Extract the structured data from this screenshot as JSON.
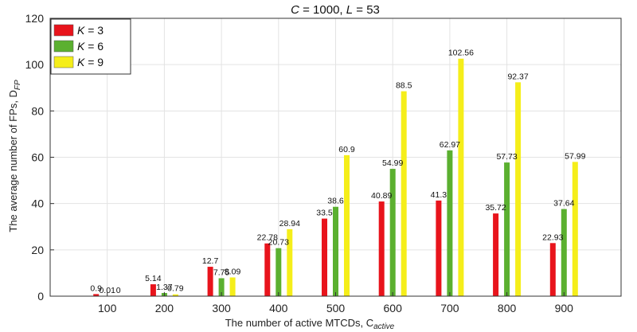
{
  "chart_data": {
    "type": "bar",
    "title": "C = 1000, L = 53",
    "title_parts": {
      "c_var": "C",
      "c_rest": " = 1000, ",
      "l_var": "L",
      "l_rest": " = 53"
    },
    "xlabel": "The number of active MTCDs, C",
    "xlabel_subscript": "active",
    "ylabel": "The average number of FPs, D",
    "ylabel_subscript": "FP",
    "categories": [
      "100",
      "200",
      "300",
      "400",
      "500",
      "600",
      "700",
      "800",
      "900"
    ],
    "ylim": [
      0,
      120
    ],
    "yticks": [
      "0",
      "20",
      "40",
      "60",
      "80",
      "100",
      "120"
    ],
    "grid": true,
    "legend_position": "top-left",
    "series": [
      {
        "name": "K = 3",
        "name_var": "K",
        "name_rest": " = 3",
        "color": "#e8141c",
        "values": [
          0.9,
          5.14,
          12.7,
          22.78,
          33.5,
          40.89,
          41.3,
          35.72,
          22.93
        ],
        "labels": [
          "0.9",
          "5.14",
          "12.7",
          "22.78",
          "33.5",
          "40.89",
          "41.3",
          "35.72",
          "22.93"
        ]
      },
      {
        "name": "K = 6",
        "name_var": "K",
        "name_rest": " = 6",
        "color": "#5bb030",
        "values": [
          0.01,
          1.37,
          7.75,
          20.73,
          38.6,
          54.99,
          62.97,
          57.73,
          37.64
        ],
        "labels": [
          "0.01",
          "1.37",
          "7.75",
          "20.73",
          "38.6",
          "54.99",
          "62.97",
          "57.73",
          "37.64"
        ]
      },
      {
        "name": "K = 9",
        "name_var": "K",
        "name_rest": " = 9",
        "color": "#f5ee1a",
        "values": [
          0,
          0.79,
          8.09,
          28.94,
          60.9,
          88.5,
          102.56,
          92.37,
          57.99
        ],
        "labels": [
          "0",
          "0.79",
          "8.09",
          "28.94",
          "60.9",
          "88.5",
          "102.56",
          "92.37",
          "57.99"
        ]
      }
    ]
  }
}
